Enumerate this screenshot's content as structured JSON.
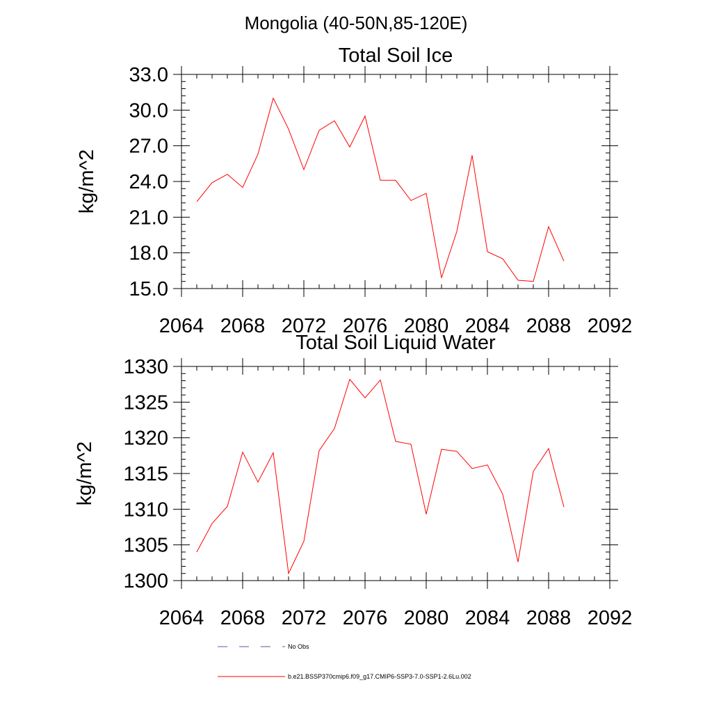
{
  "header": {
    "title": "Mongolia (40-50N,85-120E)"
  },
  "colors": {
    "series": "#ff0000",
    "obs": "#5555aa",
    "axis": "#000000"
  },
  "chart_data": [
    {
      "type": "line",
      "title": "Total Soil Ice",
      "ylabel": "kg/m^2",
      "xlim": [
        2064,
        2092
      ],
      "ylim": [
        15,
        33
      ],
      "xticks": [
        2064,
        2068,
        2072,
        2076,
        2080,
        2084,
        2088,
        2092
      ],
      "xtick_labels": [
        "2064",
        "2068",
        "2072",
        "2076",
        "2080",
        "2084",
        "2088",
        "2092"
      ],
      "yticks": [
        15,
        18,
        21,
        24,
        27,
        30,
        33
      ],
      "ytick_labels": [
        "15.0",
        "18.0",
        "21.0",
        "24.0",
        "27.0",
        "30.0",
        "33.0"
      ],
      "x": [
        2065,
        2066,
        2067,
        2068,
        2069,
        2070,
        2071,
        2072,
        2073,
        2074,
        2075,
        2076,
        2077,
        2078,
        2079,
        2080,
        2081,
        2082,
        2083,
        2084,
        2085,
        2086,
        2087,
        2088,
        2089
      ],
      "series": [
        {
          "values": [
            22.3,
            23.9,
            24.6,
            23.5,
            26.3,
            31.0,
            28.4,
            25.0,
            28.3,
            29.1,
            26.9,
            29.5,
            24.1,
            24.1,
            22.4,
            23.0,
            15.9,
            19.8,
            26.2,
            18.1,
            17.5,
            15.7,
            15.6,
            20.2,
            17.3
          ]
        }
      ]
    },
    {
      "type": "line",
      "title": "Total Soil Liquid Water",
      "ylabel": "kg/m^2",
      "xlim": [
        2064,
        2092
      ],
      "ylim": [
        1300,
        1330
      ],
      "xticks": [
        2064,
        2068,
        2072,
        2076,
        2080,
        2084,
        2088,
        2092
      ],
      "xtick_labels": [
        "2064",
        "2068",
        "2072",
        "2076",
        "2080",
        "2084",
        "2088",
        "2092"
      ],
      "yticks": [
        1300,
        1305,
        1310,
        1315,
        1320,
        1325,
        1330
      ],
      "ytick_labels": [
        "1300",
        "1305",
        "1310",
        "1315",
        "1320",
        "1325",
        "1330"
      ],
      "x": [
        2065,
        2066,
        2067,
        2068,
        2069,
        2070,
        2071,
        2072,
        2073,
        2074,
        2075,
        2076,
        2077,
        2078,
        2079,
        2080,
        2081,
        2082,
        2083,
        2084,
        2085,
        2086,
        2087,
        2088,
        2089
      ],
      "series": [
        {
          "values": [
            1304.0,
            1308.0,
            1310.4,
            1318.0,
            1313.8,
            1317.9,
            1301.0,
            1305.5,
            1318.2,
            1321.3,
            1328.2,
            1325.6,
            1328.1,
            1319.5,
            1319.1,
            1309.3,
            1318.4,
            1318.1,
            1315.7,
            1316.2,
            1312.1,
            1302.6,
            1315.3,
            1318.5,
            1310.3
          ]
        }
      ]
    }
  ],
  "legend": {
    "items": [
      {
        "label": "No Obs",
        "style": "dashed"
      },
      {
        "label": "b.e21.BSSP370cmip6.f09_g17.CMIP6-SSP3-7.0-SSP1-2.6Lu.002",
        "style": "solid"
      }
    ]
  }
}
